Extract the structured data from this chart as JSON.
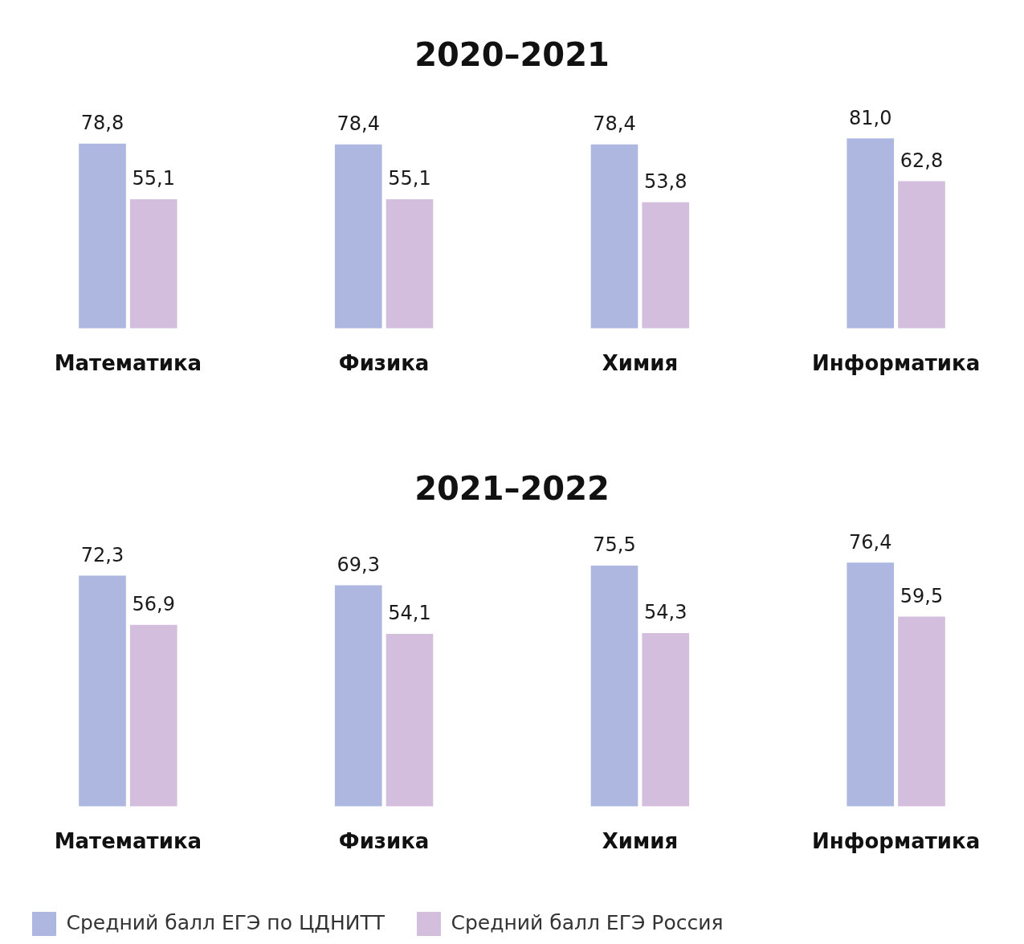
{
  "chart_data": [
    {
      "type": "bar",
      "title": "2020–2021",
      "categories": [
        "Математика",
        "Физика",
        "Химия",
        "Информатика"
      ],
      "tick_labels": "x",
      "grid": false,
      "legend": false,
      "series": [
        {
          "color": "#aeb7e0",
          "values": [
            78.8,
            78.4,
            78.4,
            81.0
          ],
          "value_labels": [
            "78,8",
            "78,4",
            "78,4",
            "81,0"
          ]
        },
        {
          "color": "#d4bedd",
          "values": [
            55.1,
            55.1,
            53.8,
            62.8
          ],
          "value_labels": [
            "55,1",
            "55,1",
            "53,8",
            "62,8"
          ]
        }
      ]
    },
    {
      "type": "bar",
      "title": "2021–2022",
      "categories": [
        "Математика",
        "Физика",
        "Химия",
        "Информатика"
      ],
      "tick_labels": "x",
      "grid": false,
      "legend": "bottom",
      "series": [
        {
          "name": "Средний балл ЕГЭ по ЦДНИТТ",
          "color": "#aeb7e0",
          "values": [
            72.3,
            69.3,
            75.5,
            76.4
          ],
          "value_labels": [
            "72,3",
            "69,3",
            "75,5",
            "76,4"
          ]
        },
        {
          "name": "Средний балл ЕГЭ Россия",
          "color": "#d4bedd",
          "values": [
            56.9,
            54.1,
            54.3,
            59.5
          ],
          "value_labels": [
            "56,9",
            "54,1",
            "54,3",
            "59,5"
          ]
        }
      ]
    }
  ]
}
